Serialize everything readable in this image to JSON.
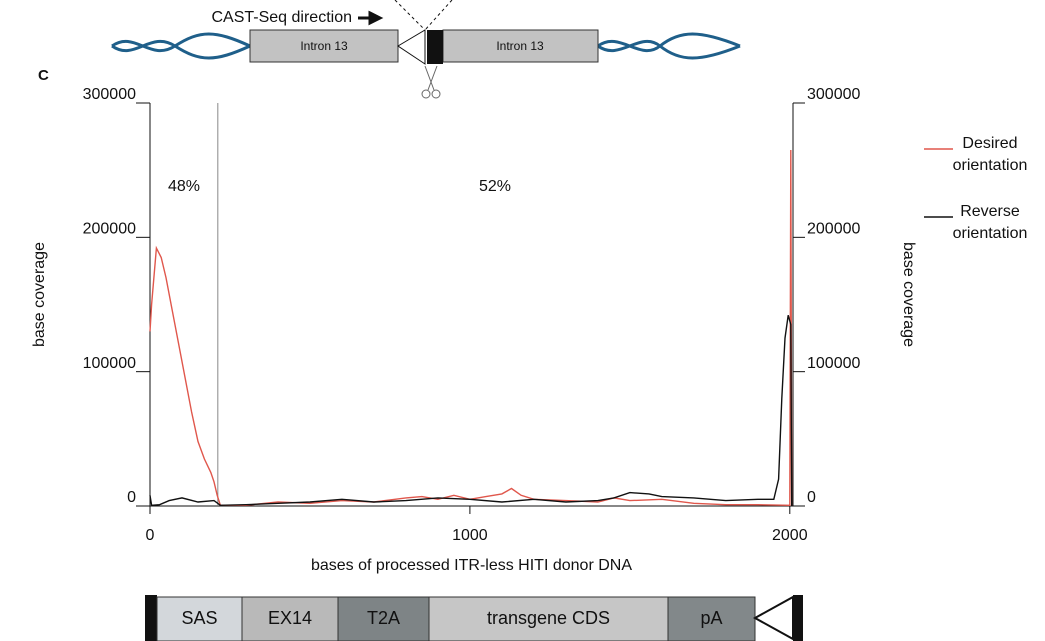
{
  "panel_label": "C",
  "top_diagram": {
    "direction_label": "CAST-Seq direction",
    "left_box": "Intron 13",
    "right_box": "Intron 13"
  },
  "chart_data": {
    "type": "line",
    "x_label": "bases of processed ITR-less HITI donor DNA",
    "y_label": "base coverage",
    "y2_label": "base coverage",
    "xlim": [
      0,
      2010
    ],
    "xticks": [
      0,
      1000,
      2000
    ],
    "ylim": [
      0,
      300000
    ],
    "yticks": [
      0,
      100000,
      200000,
      300000
    ],
    "y2lim": [
      0,
      300000
    ],
    "y2ticks": [
      0,
      100000,
      200000,
      300000
    ],
    "divider": 212,
    "annotations": [
      "48%",
      "52%"
    ],
    "series": [
      {
        "name": "Desired orientation",
        "color": "#e0574c",
        "x": [
          0,
          5,
          20,
          35,
          50,
          70,
          90,
          110,
          130,
          150,
          170,
          190,
          200,
          210,
          220,
          300,
          400,
          500,
          600,
          700,
          800,
          850,
          900,
          950,
          1000,
          1050,
          1100,
          1130,
          1160,
          1200,
          1300,
          1400,
          1450,
          1500,
          1600,
          1700,
          1800,
          1900,
          2000,
          2003,
          2006
        ],
        "values": [
          130000,
          150000,
          192000,
          185000,
          170000,
          145000,
          120000,
          95000,
          70000,
          48000,
          35000,
          25000,
          18000,
          8000,
          500,
          500,
          3000,
          2000,
          4000,
          3000,
          6000,
          7000,
          5000,
          8000,
          5000,
          7000,
          9000,
          13000,
          8000,
          5000,
          4000,
          3000,
          6000,
          4000,
          5000,
          2000,
          1000,
          1000,
          500,
          265000,
          0
        ]
      },
      {
        "name": "Reverse orientation",
        "color": "#111111",
        "x": [
          0,
          5,
          30,
          60,
          100,
          150,
          200,
          220,
          300,
          400,
          500,
          600,
          700,
          800,
          900,
          1000,
          1100,
          1200,
          1300,
          1400,
          1450,
          1500,
          1560,
          1600,
          1700,
          1800,
          1900,
          1950,
          1965,
          1975,
          1985,
          1995,
          2003,
          2006
        ],
        "values": [
          8000,
          500,
          1000,
          4000,
          6000,
          3000,
          4000,
          500,
          1000,
          2000,
          3000,
          5000,
          3000,
          4000,
          6000,
          5000,
          3000,
          5000,
          3000,
          4000,
          6000,
          10000,
          9000,
          7000,
          6000,
          4000,
          5000,
          5000,
          20000,
          80000,
          125000,
          142000,
          135000,
          0
        ]
      }
    ]
  },
  "bottom_diagram": {
    "segments": [
      "SAS",
      "EX14",
      "T2A",
      "transgene CDS",
      "pA"
    ]
  }
}
